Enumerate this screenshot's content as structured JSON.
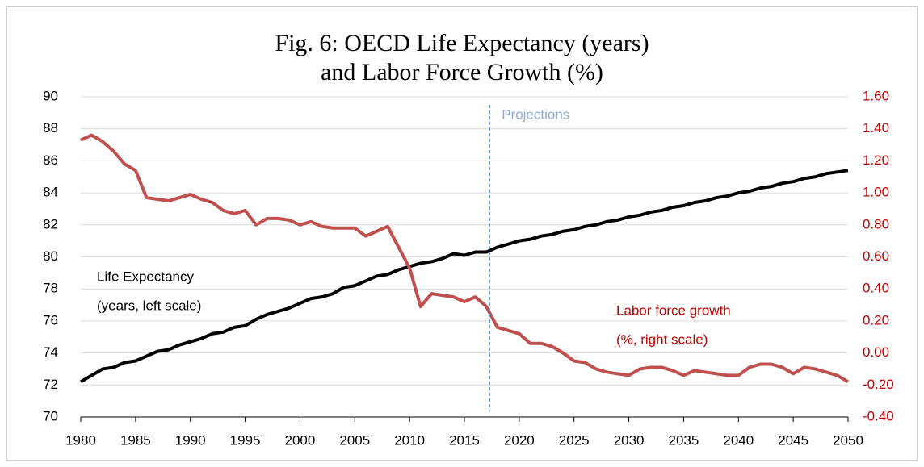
{
  "chart_data": {
    "type": "line",
    "title": [
      "Fig. 6: OECD Life Expectancy (years)",
      "and Labor Force Growth (%)"
    ],
    "x": [
      1980,
      1981,
      1982,
      1983,
      1984,
      1985,
      1986,
      1987,
      1988,
      1989,
      1990,
      1991,
      1992,
      1993,
      1994,
      1995,
      1996,
      1997,
      1998,
      1999,
      2000,
      2001,
      2002,
      2003,
      2004,
      2005,
      2006,
      2007,
      2008,
      2009,
      2010,
      2011,
      2012,
      2013,
      2014,
      2015,
      2016,
      2017,
      2018,
      2019,
      2020,
      2021,
      2022,
      2023,
      2024,
      2025,
      2026,
      2027,
      2028,
      2029,
      2030,
      2031,
      2032,
      2033,
      2034,
      2035,
      2036,
      2037,
      2038,
      2039,
      2040,
      2041,
      2042,
      2043,
      2044,
      2045,
      2046,
      2047,
      2048,
      2049,
      2050
    ],
    "series": [
      {
        "name": [
          "Life Expectancy",
          "(years, left scale)"
        ],
        "color": "#000000",
        "axis": "y",
        "values": [
          72.2,
          72.6,
          73.0,
          73.1,
          73.4,
          73.5,
          73.8,
          74.1,
          74.2,
          74.5,
          74.7,
          74.9,
          75.2,
          75.3,
          75.6,
          75.7,
          76.1,
          76.4,
          76.6,
          76.8,
          77.1,
          77.4,
          77.5,
          77.7,
          78.1,
          78.2,
          78.5,
          78.8,
          78.9,
          79.2,
          79.4,
          79.6,
          79.7,
          79.9,
          80.2,
          80.1,
          80.3,
          80.3,
          80.6,
          80.8,
          81.0,
          81.1,
          81.3,
          81.4,
          81.6,
          81.7,
          81.9,
          82.0,
          82.2,
          82.3,
          82.5,
          82.6,
          82.8,
          82.9,
          83.1,
          83.2,
          83.4,
          83.5,
          83.7,
          83.8,
          84.0,
          84.1,
          84.3,
          84.4,
          84.6,
          84.7,
          84.9,
          85.0,
          85.2,
          85.3,
          85.4
        ]
      },
      {
        "name": [
          "Labor force growth",
          "(%, right scale)"
        ],
        "color": "#c0504d",
        "label_color": "#c00000",
        "axis": "y2",
        "values": [
          1.33,
          1.36,
          1.32,
          1.26,
          1.18,
          1.14,
          0.97,
          0.96,
          0.95,
          0.97,
          0.99,
          0.96,
          0.94,
          0.89,
          0.87,
          0.89,
          0.8,
          0.84,
          0.84,
          0.83,
          0.8,
          0.82,
          0.79,
          0.78,
          0.78,
          0.78,
          0.73,
          0.76,
          0.79,
          0.66,
          0.53,
          0.29,
          0.37,
          0.36,
          0.35,
          0.32,
          0.35,
          0.29,
          0.16,
          0.14,
          0.12,
          0.06,
          0.06,
          0.04,
          0.0,
          -0.05,
          -0.06,
          -0.1,
          -0.12,
          -0.13,
          -0.14,
          -0.1,
          -0.09,
          -0.09,
          -0.11,
          -0.14,
          -0.11,
          -0.12,
          -0.13,
          -0.14,
          -0.14,
          -0.09,
          -0.07,
          -0.07,
          -0.09,
          -0.13,
          -0.09,
          -0.1,
          -0.12,
          -0.14,
          -0.18
        ]
      }
    ],
    "projection": {
      "label": "Projections",
      "x": 2017.3
    },
    "xlim": [
      1980,
      2050
    ],
    "xticks": [
      1980,
      1985,
      1990,
      1995,
      2000,
      2005,
      2010,
      2015,
      2020,
      2025,
      2030,
      2035,
      2040,
      2045,
      2050
    ],
    "ylim": [
      70,
      90
    ],
    "yticks": [
      70,
      72,
      74,
      76,
      78,
      80,
      82,
      84,
      86,
      88,
      90
    ],
    "y2lim": [
      -0.4,
      1.6
    ],
    "y2ticks": [
      {
        "value": -0.4,
        "label": "-0.40"
      },
      {
        "value": -0.2,
        "label": "-0.20"
      },
      {
        "value": 0,
        "label": "0.00"
      },
      {
        "value": 0.2,
        "label": "0.20"
      },
      {
        "value": 0.4,
        "label": "0.40"
      },
      {
        "value": 0.6,
        "label": "0.60"
      },
      {
        "value": 0.8,
        "label": "0.80"
      },
      {
        "value": 1.0,
        "label": "1.00"
      },
      {
        "value": 1.2,
        "label": "1.20"
      },
      {
        "value": 1.4,
        "label": "1.40"
      },
      {
        "value": 1.6,
        "label": "1.60"
      }
    ],
    "grid": true
  }
}
